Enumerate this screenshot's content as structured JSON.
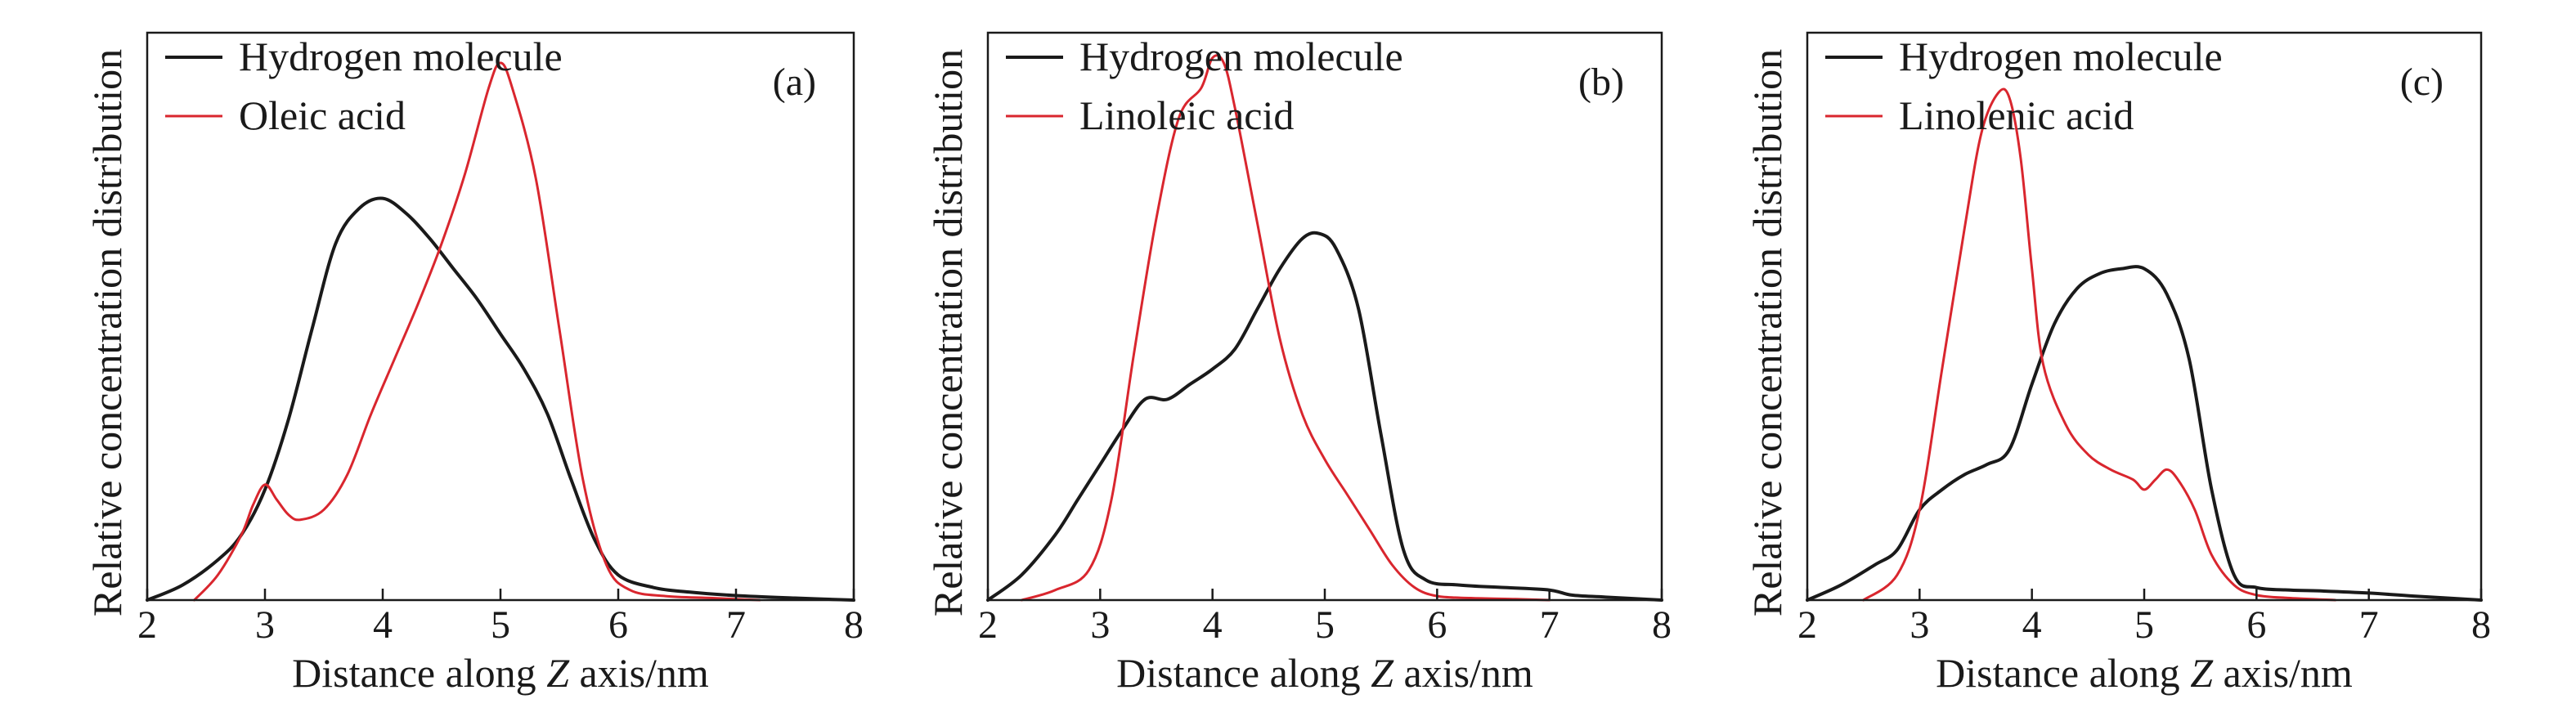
{
  "colors": {
    "hydrogen": "#1a1a1a",
    "acid": "#d9262e",
    "axis": "#1a1a1a"
  },
  "chart_data": [
    {
      "type": "line",
      "panel": "(a)",
      "xlabel_pre": "Distance along ",
      "xlabel_italic": "Z",
      "xlabel_post": " axis/nm",
      "ylabel": "Relative concentration distribution",
      "xlim": [
        2,
        8
      ],
      "ylim": [
        0,
        1
      ],
      "xticks": [
        2,
        3,
        4,
        5,
        6,
        7,
        8
      ],
      "legend": "top-left",
      "series": [
        {
          "name": "Hydrogen molecule",
          "color": "#1a1a1a",
          "x": [
            2.0,
            2.3,
            2.6,
            2.8,
            3.0,
            3.2,
            3.4,
            3.6,
            3.8,
            4.0,
            4.2,
            4.4,
            4.6,
            4.8,
            5.0,
            5.2,
            5.4,
            5.6,
            5.8,
            6.0,
            6.3,
            6.6,
            7.0,
            7.5,
            8.0
          ],
          "y": [
            0.0,
            0.03,
            0.08,
            0.13,
            0.22,
            0.36,
            0.54,
            0.71,
            0.78,
            0.8,
            0.77,
            0.72,
            0.66,
            0.6,
            0.53,
            0.46,
            0.37,
            0.24,
            0.12,
            0.05,
            0.025,
            0.016,
            0.009,
            0.004,
            0.0
          ]
        },
        {
          "name": "Oleic acid",
          "color": "#d9262e",
          "x": [
            2.4,
            2.6,
            2.8,
            2.9,
            3.0,
            3.1,
            3.2,
            3.3,
            3.5,
            3.7,
            3.9,
            4.1,
            4.3,
            4.5,
            4.7,
            4.9,
            5.0,
            5.1,
            5.3,
            5.5,
            5.7,
            5.9,
            6.1,
            6.4,
            6.8,
            7.2
          ],
          "y": [
            0.0,
            0.05,
            0.13,
            0.19,
            0.23,
            0.2,
            0.17,
            0.16,
            0.18,
            0.25,
            0.37,
            0.48,
            0.59,
            0.71,
            0.85,
            1.02,
            1.07,
            1.02,
            0.84,
            0.54,
            0.24,
            0.07,
            0.02,
            0.008,
            0.004,
            0.0
          ]
        }
      ]
    },
    {
      "type": "line",
      "panel": "(b)",
      "xlabel_pre": "Distance along ",
      "xlabel_italic": "Z",
      "xlabel_post": " axis/nm",
      "ylabel": "Relative concentration distribution",
      "xlim": [
        2,
        8
      ],
      "ylim": [
        0,
        1
      ],
      "xticks": [
        2,
        3,
        4,
        5,
        6,
        7,
        8
      ],
      "legend": "top-left",
      "series": [
        {
          "name": "Hydrogen molecule",
          "color": "#1a1a1a",
          "x": [
            2.0,
            2.3,
            2.6,
            2.8,
            3.0,
            3.2,
            3.4,
            3.6,
            3.8,
            4.0,
            4.2,
            4.4,
            4.6,
            4.8,
            4.95,
            5.1,
            5.3,
            5.5,
            5.7,
            5.9,
            6.2,
            6.6,
            7.0,
            7.2,
            7.5,
            8.0
          ],
          "y": [
            0.0,
            0.05,
            0.13,
            0.2,
            0.27,
            0.34,
            0.4,
            0.4,
            0.43,
            0.46,
            0.5,
            0.58,
            0.66,
            0.72,
            0.73,
            0.7,
            0.58,
            0.33,
            0.1,
            0.04,
            0.03,
            0.025,
            0.02,
            0.01,
            0.006,
            0.0
          ]
        },
        {
          "name": "Linoleic acid",
          "color": "#d9262e",
          "x": [
            2.3,
            2.6,
            2.9,
            3.1,
            3.3,
            3.5,
            3.7,
            3.9,
            4.0,
            4.1,
            4.2,
            4.4,
            4.6,
            4.8,
            5.0,
            5.2,
            5.4,
            5.6,
            5.8,
            6.0,
            6.3,
            6.7,
            7.0
          ],
          "y": [
            0.0,
            0.02,
            0.06,
            0.2,
            0.49,
            0.76,
            0.96,
            1.02,
            1.08,
            1.07,
            0.98,
            0.75,
            0.52,
            0.37,
            0.28,
            0.21,
            0.14,
            0.07,
            0.025,
            0.008,
            0.004,
            0.002,
            0.0
          ]
        }
      ]
    },
    {
      "type": "line",
      "panel": "(c)",
      "xlabel_pre": "Distance along ",
      "xlabel_italic": "Z",
      "xlabel_post": " axis/nm",
      "ylabel": "Relative concentration distribution",
      "xlim": [
        2,
        8
      ],
      "ylim": [
        0,
        1
      ],
      "xticks": [
        2,
        3,
        4,
        5,
        6,
        7,
        8
      ],
      "legend": "top-left",
      "series": [
        {
          "name": "Hydrogen molecule",
          "color": "#1a1a1a",
          "x": [
            2.0,
            2.3,
            2.6,
            2.8,
            3.0,
            3.2,
            3.4,
            3.6,
            3.8,
            4.0,
            4.2,
            4.4,
            4.6,
            4.8,
            5.0,
            5.2,
            5.4,
            5.6,
            5.8,
            6.0,
            6.3,
            6.6,
            7.0,
            7.4,
            8.0
          ],
          "y": [
            0.0,
            0.03,
            0.07,
            0.1,
            0.18,
            0.22,
            0.25,
            0.27,
            0.3,
            0.43,
            0.55,
            0.62,
            0.65,
            0.66,
            0.66,
            0.61,
            0.48,
            0.22,
            0.05,
            0.025,
            0.02,
            0.018,
            0.014,
            0.008,
            0.0
          ]
        },
        {
          "name": "Linolenic acid",
          "color": "#d9262e",
          "x": [
            2.5,
            2.8,
            3.0,
            3.2,
            3.4,
            3.55,
            3.7,
            3.8,
            3.9,
            4.0,
            4.1,
            4.3,
            4.5,
            4.7,
            4.9,
            5.0,
            5.1,
            5.2,
            5.3,
            5.45,
            5.6,
            5.8,
            6.0,
            6.3,
            6.7
          ],
          "y": [
            0.0,
            0.05,
            0.18,
            0.46,
            0.74,
            0.93,
            1.01,
            1.0,
            0.88,
            0.66,
            0.47,
            0.35,
            0.29,
            0.26,
            0.24,
            0.22,
            0.24,
            0.26,
            0.24,
            0.18,
            0.09,
            0.03,
            0.01,
            0.004,
            0.0
          ]
        }
      ]
    }
  ]
}
